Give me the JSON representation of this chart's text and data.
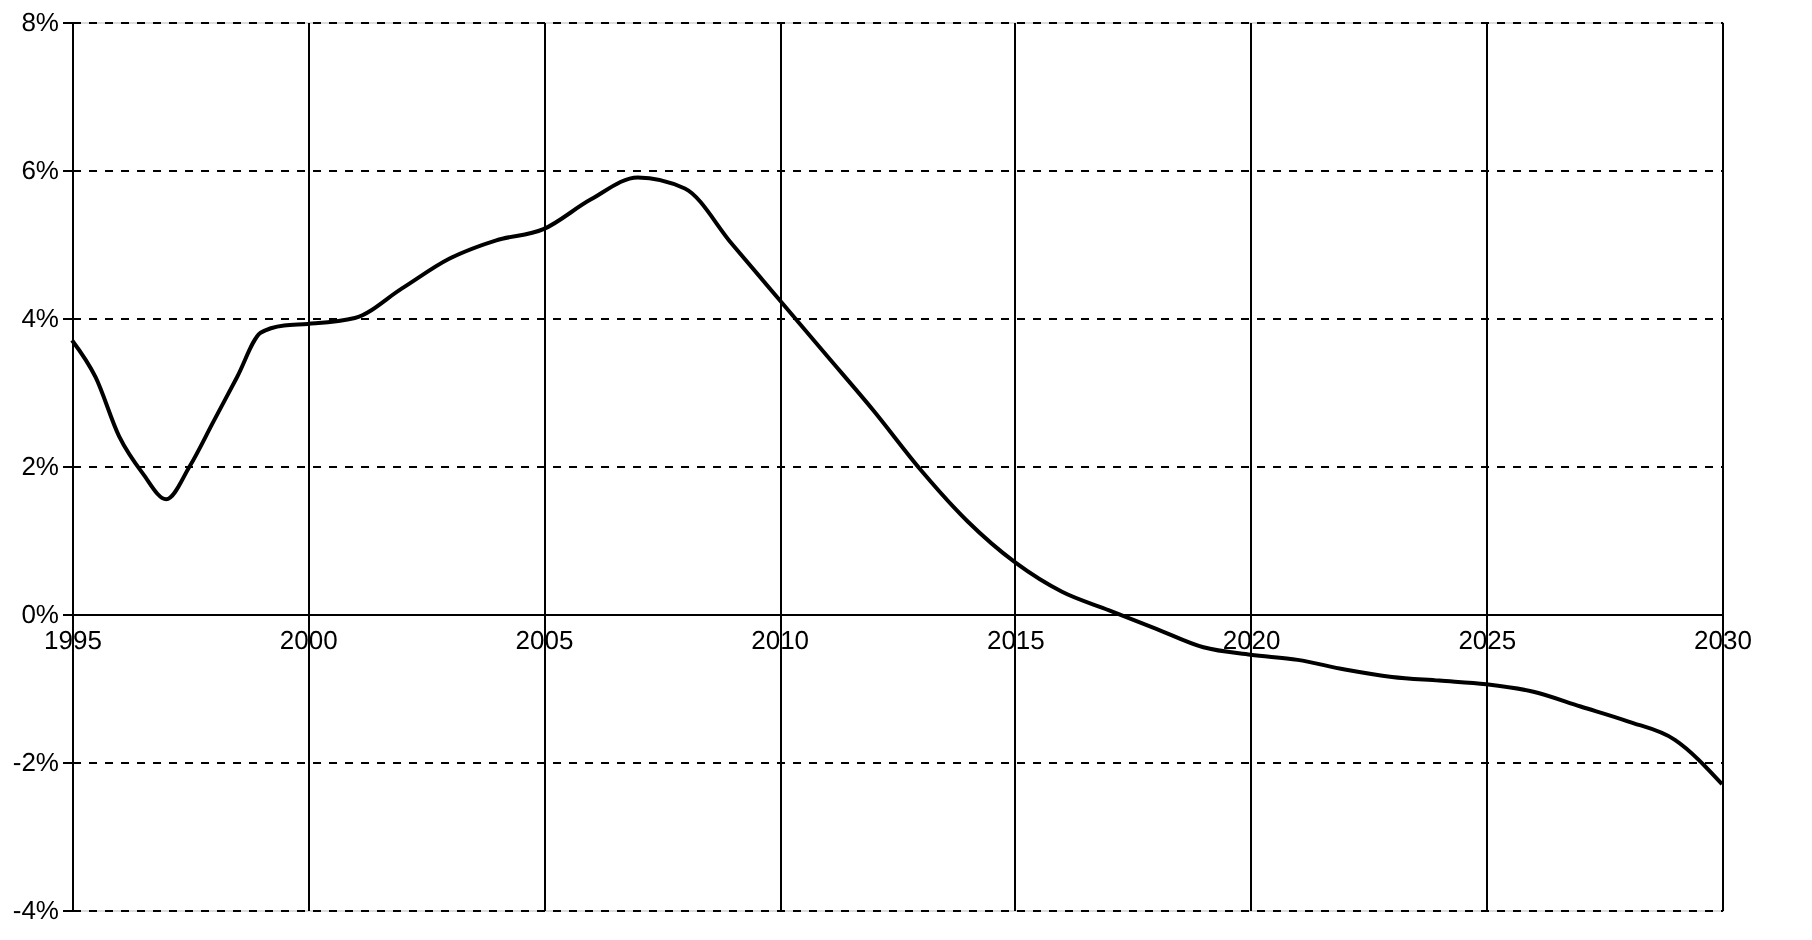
{
  "chart_data": {
    "type": "line",
    "x": [
      1995,
      1995.5,
      1996,
      1996.5,
      1997,
      1997.5,
      1998,
      1998.5,
      1999,
      1999.5,
      2000,
      2001,
      2002,
      2003,
      2004,
      2005,
      2006,
      2007,
      2008,
      2009,
      2010,
      2011,
      2012,
      2013,
      2014,
      2015,
      2016,
      2017,
      2018,
      2019,
      2020,
      2021,
      2022,
      2023,
      2024,
      2025,
      2026,
      2027,
      2028,
      2029,
      2030
    ],
    "series": [
      {
        "color": "#000000",
        "values": [
          3.7,
          3.2,
          2.4,
          1.9,
          1.55,
          2.0,
          2.6,
          3.2,
          3.8,
          3.9,
          3.92,
          4.0,
          4.4,
          4.8,
          5.05,
          5.2,
          5.6,
          5.9,
          5.75,
          5.0,
          4.25,
          3.5,
          2.75,
          1.95,
          1.25,
          0.7,
          0.3,
          0.05,
          -0.2,
          -0.45,
          -0.55,
          -0.62,
          -0.75,
          -0.85,
          -0.9,
          -0.95,
          -1.05,
          -1.25,
          -1.45,
          -1.7,
          -2.3
        ]
      }
    ],
    "xlim": [
      1995,
      2030
    ],
    "xticks": [
      1995,
      2000,
      2005,
      2010,
      2015,
      2020,
      2025,
      2030
    ],
    "ylim": [
      -4,
      8
    ],
    "yticks": [
      {
        "value": -4,
        "label": "-4%"
      },
      {
        "value": -2,
        "label": "-2%"
      },
      {
        "value": 0,
        "label": "0%"
      },
      {
        "value": 2,
        "label": "2%"
      },
      {
        "value": 4,
        "label": "4%"
      },
      {
        "value": 6,
        "label": "6%"
      },
      {
        "value": 8,
        "label": "8%"
      }
    ],
    "grid": true,
    "marker": "none",
    "line_style": "solid"
  }
}
